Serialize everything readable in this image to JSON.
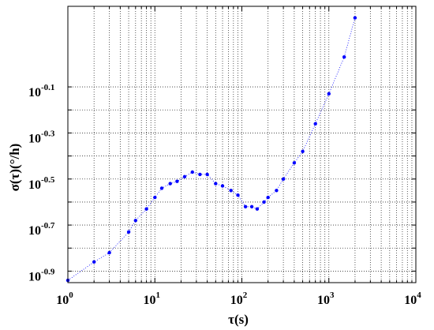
{
  "chart_data": {
    "type": "scatter",
    "title": "",
    "xlabel": "τ(s)",
    "ylabel": "σ(τ)(°/h)",
    "x_scale": "log",
    "y_scale": "log",
    "xlim": [
      1,
      10000
    ],
    "ylim_log10": [
      -0.95,
      0.25
    ],
    "grid": true,
    "grid_style": "dotted",
    "marker_color": "#0000ff",
    "x_ticks": [
      {
        "base": "10",
        "exp": "0",
        "value": 1
      },
      {
        "base": "10",
        "exp": "1",
        "value": 10
      },
      {
        "base": "10",
        "exp": "2",
        "value": 100
      },
      {
        "base": "10",
        "exp": "3",
        "value": 1000
      },
      {
        "base": "10",
        "exp": "4",
        "value": 10000
      }
    ],
    "y_ticks": [
      {
        "base": "10",
        "exp": "-0.1",
        "log10": -0.1
      },
      {
        "base": "10",
        "exp": "-0.3",
        "log10": -0.3
      },
      {
        "base": "10",
        "exp": "-0.5",
        "log10": -0.5
      },
      {
        "base": "10",
        "exp": "-0.7",
        "log10": -0.7
      },
      {
        "base": "10",
        "exp": "-0.9",
        "log10": -0.9
      }
    ],
    "y_minor_log10": [
      -0.2,
      -0.4,
      -0.6,
      -0.8
    ],
    "series": [
      {
        "x_tau_s": [
          1,
          2,
          3,
          5,
          6,
          8,
          10,
          12,
          15,
          18,
          22,
          27,
          33,
          40,
          50,
          60,
          75,
          90,
          110,
          130,
          150,
          180,
          200,
          250,
          300,
          400,
          500,
          700,
          1000,
          1500,
          2000
        ],
        "y_log10": [
          -0.94,
          -0.86,
          -0.82,
          -0.73,
          -0.68,
          -0.63,
          -0.58,
          -0.54,
          -0.52,
          -0.51,
          -0.49,
          -0.47,
          -0.48,
          -0.48,
          -0.52,
          -0.53,
          -0.55,
          -0.57,
          -0.62,
          -0.62,
          -0.63,
          -0.6,
          -0.58,
          -0.55,
          -0.5,
          -0.43,
          -0.38,
          -0.26,
          -0.13,
          0.03,
          0.2
        ]
      }
    ]
  }
}
